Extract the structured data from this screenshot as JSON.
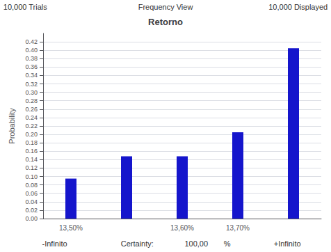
{
  "chart_data": {
    "type": "bar",
    "title": "Retorno",
    "ylabel": "Probability",
    "categories": [
      "13,50%",
      null,
      "13,60%",
      "13,70%",
      null
    ],
    "values": [
      0.095,
      0.148,
      0.148,
      0.205,
      0.405
    ],
    "color": "#1515CC",
    "ylim": [
      0.0,
      0.44
    ],
    "yticks": [
      {
        "value": 0.0,
        "label": "0.00"
      },
      0.02,
      0.04,
      0.06,
      0.08,
      {
        "value": 0.1,
        "label": "0.10"
      },
      0.12,
      0.14,
      0.16,
      0.18,
      {
        "value": 0.2,
        "label": "0.20"
      },
      0.22,
      0.24,
      0.26,
      0.28,
      {
        "value": 0.3,
        "label": "0.30"
      },
      0.32,
      0.34,
      0.36,
      0.38,
      {
        "value": 0.4,
        "label": "0.40"
      },
      0.42
    ],
    "grid": true,
    "annotations": [
      "10,000 Trials",
      "Frequency View",
      "10,000 Displayed",
      "-Infinito",
      "Certainty:",
      "100,00",
      "%",
      "+Infinito"
    ]
  }
}
